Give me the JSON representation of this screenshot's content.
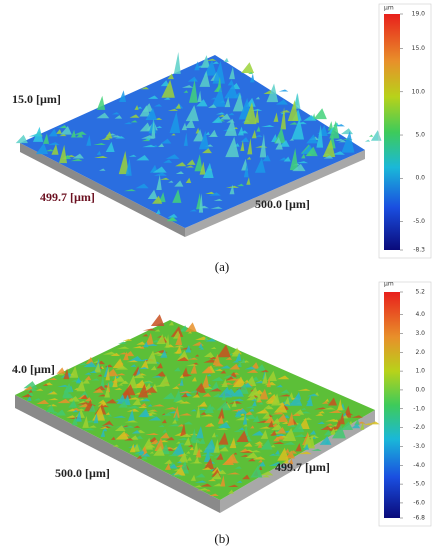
{
  "panels": [
    {
      "caption": "(a)",
      "height_label": "15.0 [µm]",
      "x_label": "499.7 [µm]",
      "y_label": "500.0 [µm]",
      "colorbar": {
        "unit": "µm",
        "ticks": [
          {
            "value": 19,
            "label": "19.0"
          },
          {
            "value": 15,
            "label": "15.0"
          },
          {
            "value": 10,
            "label": "10.0"
          },
          {
            "value": 5,
            "label": "5.0"
          },
          {
            "value": 0,
            "label": "0.0"
          },
          {
            "value": -5,
            "label": "-5.0"
          },
          -8.3
        ]
      }
    },
    {
      "caption": "(b)",
      "height_label": "4.0 [µm]",
      "x_label": "500.0 [µm]",
      "y_label": "499.7 [µm]",
      "colorbar": {
        "unit": "µm",
        "ticks": [
          5.2,
          {
            "value": 4,
            "label": "4.0"
          },
          {
            "value": 3,
            "label": "3.0"
          },
          {
            "value": 2,
            "label": "2.0"
          },
          {
            "value": 1,
            "label": "1.0"
          },
          {
            "value": 0,
            "label": "0.0"
          },
          {
            "value": -1,
            "label": "-1.0"
          },
          {
            "value": -2,
            "label": "-2.0"
          },
          {
            "value": -3,
            "label": "-3.0"
          },
          {
            "value": -4,
            "label": "-4.0"
          },
          {
            "value": -5,
            "label": "-5.0"
          },
          {
            "value": -6,
            "label": "-6.0"
          },
          -6.8
        ]
      }
    }
  ]
}
